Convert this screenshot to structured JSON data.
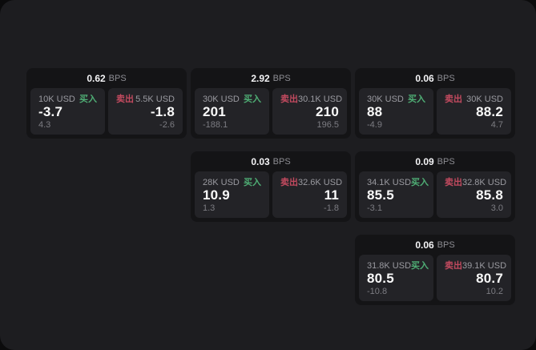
{
  "page": {
    "background": "#1d1d20",
    "card_background": "#141416",
    "panel_background": "#232327",
    "accent_green": "#4fae75",
    "accent_red": "#c24a5f"
  },
  "labels": {
    "bps_suffix": "BPS",
    "buy": "买入",
    "sell": "卖出"
  },
  "cards": [
    {
      "bps": "0.62",
      "buy": {
        "amount": "10K USD",
        "price": "-3.7",
        "delta": "4.3"
      },
      "sell": {
        "amount": "5.5K USD",
        "price": "-1.8",
        "delta": "-2.6"
      }
    },
    {
      "bps": "2.92",
      "buy": {
        "amount": "30K USD",
        "price": "201",
        "delta": "-188.1"
      },
      "sell": {
        "amount": "30.1K USD",
        "price": "210",
        "delta": "196.5"
      }
    },
    {
      "bps": "0.06",
      "buy": {
        "amount": "30K USD",
        "price": "88",
        "delta": "-4.9"
      },
      "sell": {
        "amount": "30K USD",
        "price": "88.2",
        "delta": "4.7"
      }
    },
    {
      "bps": "0.03",
      "buy": {
        "amount": "28K USD",
        "price": "10.9",
        "delta": "1.3"
      },
      "sell": {
        "amount": "32.6K USD",
        "price": "11",
        "delta": "-1.8"
      }
    },
    {
      "bps": "0.09",
      "buy": {
        "amount": "34.1K USD",
        "price": "85.5",
        "delta": "-3.1"
      },
      "sell": {
        "amount": "32.8K USD",
        "price": "85.8",
        "delta": "3.0"
      }
    },
    {
      "bps": "0.06",
      "buy": {
        "amount": "31.8K USD",
        "price": "80.5",
        "delta": "-10.8"
      },
      "sell": {
        "amount": "39.1K USD",
        "price": "80.7",
        "delta": "10.2"
      }
    }
  ]
}
